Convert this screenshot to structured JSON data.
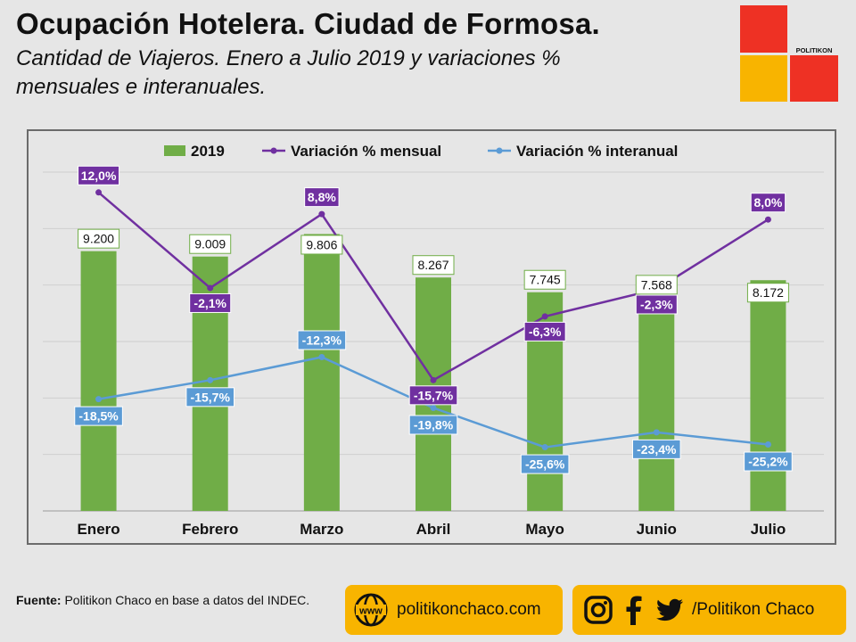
{
  "header": {
    "title": "Ocupación Hotelera. Ciudad de Formosa.",
    "subtitle": "Cantidad de Viajeros. Enero a Julio 2019 y variaciones % mensuales e interanuales."
  },
  "logo": {
    "brand": "POLITIKON"
  },
  "colors": {
    "bar": "#70ad47",
    "mensual": "#7030a0",
    "interanual": "#5b9bd5",
    "accent_yellow": "#f8b400",
    "accent_red": "#ee3124"
  },
  "chart_data": {
    "type": "bar",
    "categories": [
      "Enero",
      "Febrero",
      "Marzo",
      "Abril",
      "Mayo",
      "Junio",
      "Julio"
    ],
    "series": [
      {
        "name": "2019",
        "kind": "bar",
        "values": [
          9200,
          9009,
          9806,
          8267,
          7745,
          7568,
          8172
        ],
        "labels": [
          "9.200",
          "9.009",
          "9.806",
          "8.267",
          "7.745",
          "7.568",
          "8.172"
        ]
      },
      {
        "name": "Variación % mensual",
        "kind": "line",
        "values": [
          12.0,
          -2.1,
          8.8,
          -15.7,
          -6.3,
          -2.3,
          8.0
        ],
        "labels": [
          "12,0%",
          "-2,1%",
          "8,8%",
          "-15,7%",
          "-6,3%",
          "-2,3%",
          "8,0%"
        ]
      },
      {
        "name": "Variación % interanual",
        "kind": "line",
        "values": [
          -18.5,
          -15.7,
          -12.3,
          -19.8,
          -25.6,
          -23.4,
          -25.2
        ],
        "labels": [
          "-18,5%",
          "-15,7%",
          "-12,3%",
          "-19,8%",
          "-25,6%",
          "-23,4%",
          "-25,2%"
        ]
      }
    ],
    "ylim_bars": [
      0,
      12000
    ],
    "ylim_lines": [
      -35,
      15
    ],
    "legend_position": "top",
    "grid": true
  },
  "footer": {
    "source_label": "Fuente:",
    "source_text": "Politikon Chaco en base a datos del INDEC.",
    "website": "politikonchaco.com",
    "social": "/Politikon Chaco",
    "icons": [
      "www-icon",
      "instagram-icon",
      "facebook-icon",
      "twitter-icon"
    ]
  }
}
